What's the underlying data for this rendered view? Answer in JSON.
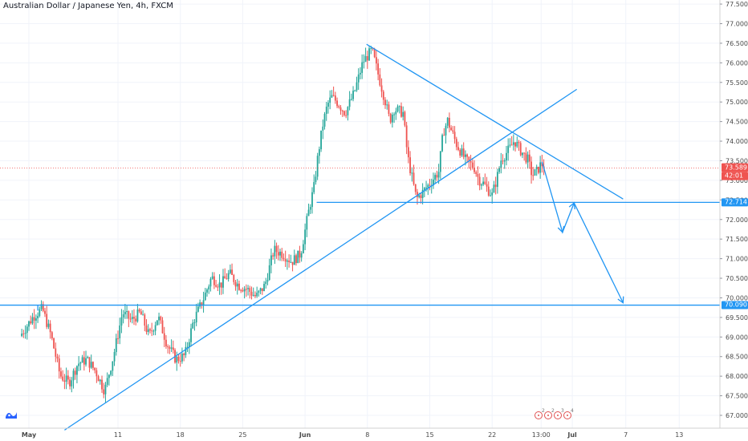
{
  "header": {
    "title": "Australian Dollar / Japanese Yen, 4h, FXCM"
  },
  "chart_data": {
    "type": "candlestick",
    "symbol": "AUDJPY",
    "interval": "4h",
    "price_axis": {
      "min": 67.0,
      "max": 77.5,
      "tick_step": 0.5,
      "ticks": [
        "67.000",
        "67.500",
        "68.000",
        "68.500",
        "69.000",
        "69.500",
        "70.000",
        "70.500",
        "71.000",
        "71.500",
        "72.000",
        "72.500",
        "73.000",
        "73.500",
        "74.000",
        "74.500",
        "75.000",
        "75.500",
        "76.000",
        "76.500",
        "77.000",
        "77.500"
      ]
    },
    "time_axis": {
      "labels": [
        "May",
        "11",
        "18",
        "25",
        "Jun",
        "8",
        "15",
        "22",
        "13:00",
        "Jul",
        "7",
        "13"
      ],
      "days": [
        1,
        11,
        18,
        25,
        32,
        39,
        46,
        53,
        58.5,
        62,
        68,
        74
      ],
      "bold": [
        "May",
        "Jun",
        "Jul"
      ]
    },
    "current_price": {
      "value": 73.589,
      "label": "73.589",
      "countdown": "42:01",
      "color": "#ef5350"
    },
    "levels": [
      {
        "value": 72.714,
        "label": "72.714",
        "color": "#2196f3"
      },
      {
        "value": 70.09,
        "label": "70.090",
        "color": "#2196f3"
      }
    ],
    "trendlines": [
      {
        "name": "rising-support",
        "from": {
          "day": 5,
          "price": 66.9
        },
        "to": {
          "day": 62.5,
          "price": 75.6
        }
      },
      {
        "name": "falling-resistance",
        "from": {
          "day": 38.9,
          "price": 76.75
        },
        "to": {
          "day": 67.7,
          "price": 72.8
        }
      }
    ],
    "projection": {
      "points": [
        {
          "day": 58.6,
          "price": 73.75
        },
        {
          "day": 60.9,
          "price": 71.95
        },
        {
          "day": 62.2,
          "price": 72.7
        },
        {
          "day": 67.7,
          "price": 70.15
        }
      ]
    },
    "ohlc_path": [
      [
        0,
        69.3
      ],
      [
        1.5,
        69.8
      ],
      [
        2.5,
        70.0
      ],
      [
        3.5,
        69.3
      ],
      [
        4.5,
        68.3
      ],
      [
        5.5,
        68.1
      ],
      [
        6.5,
        68.6
      ],
      [
        7.5,
        68.7
      ],
      [
        8.5,
        68.4
      ],
      [
        9.5,
        67.9
      ],
      [
        10.5,
        68.8
      ],
      [
        11.5,
        69.9
      ],
      [
        12.5,
        69.7
      ],
      [
        13.5,
        69.9
      ],
      [
        14.5,
        69.3
      ],
      [
        15.5,
        69.8
      ],
      [
        16.5,
        69.1
      ],
      [
        17.5,
        68.7
      ],
      [
        18.5,
        68.8
      ],
      [
        19.5,
        69.7
      ],
      [
        20.5,
        70.2
      ],
      [
        21.5,
        70.8
      ],
      [
        22.5,
        70.6
      ],
      [
        23.5,
        70.9
      ],
      [
        24.5,
        70.6
      ],
      [
        25.5,
        70.5
      ],
      [
        26.5,
        70.3
      ],
      [
        27.5,
        70.6
      ],
      [
        28.5,
        71.5
      ],
      [
        29.5,
        71.4
      ],
      [
        30.5,
        71.2
      ],
      [
        31.5,
        71.4
      ],
      [
        32,
        72.0
      ],
      [
        32.5,
        72.6
      ],
      [
        33,
        73.1
      ],
      [
        33.5,
        74.0
      ],
      [
        34,
        74.7
      ],
      [
        34.5,
        75.2
      ],
      [
        35,
        75.4
      ],
      [
        35.5,
        75.3
      ],
      [
        36.5,
        75.0
      ],
      [
        37.5,
        75.5
      ],
      [
        38.5,
        76.3
      ],
      [
        39.5,
        76.6
      ],
      [
        40.3,
        75.9
      ],
      [
        41,
        75.3
      ],
      [
        41.5,
        74.8
      ],
      [
        42,
        75.1
      ],
      [
        43,
        75.0
      ],
      [
        43.5,
        73.9
      ],
      [
        44.5,
        72.8
      ],
      [
        45.3,
        73.0
      ],
      [
        46,
        73.2
      ],
      [
        47,
        73.5
      ],
      [
        47.5,
        74.5
      ],
      [
        48,
        74.8
      ],
      [
        49,
        74.2
      ],
      [
        50,
        73.8
      ],
      [
        51,
        73.6
      ],
      [
        51.5,
        73.3
      ],
      [
        52,
        73.2
      ],
      [
        53,
        72.9
      ],
      [
        53.5,
        73.3
      ],
      [
        54,
        73.8
      ],
      [
        55,
        74.1
      ],
      [
        55.5,
        74.3
      ],
      [
        56,
        74.1
      ],
      [
        57,
        73.8
      ],
      [
        57.5,
        73.4
      ],
      [
        58,
        73.5
      ],
      [
        58.5,
        73.7
      ],
      [
        59,
        73.6
      ]
    ]
  }
}
